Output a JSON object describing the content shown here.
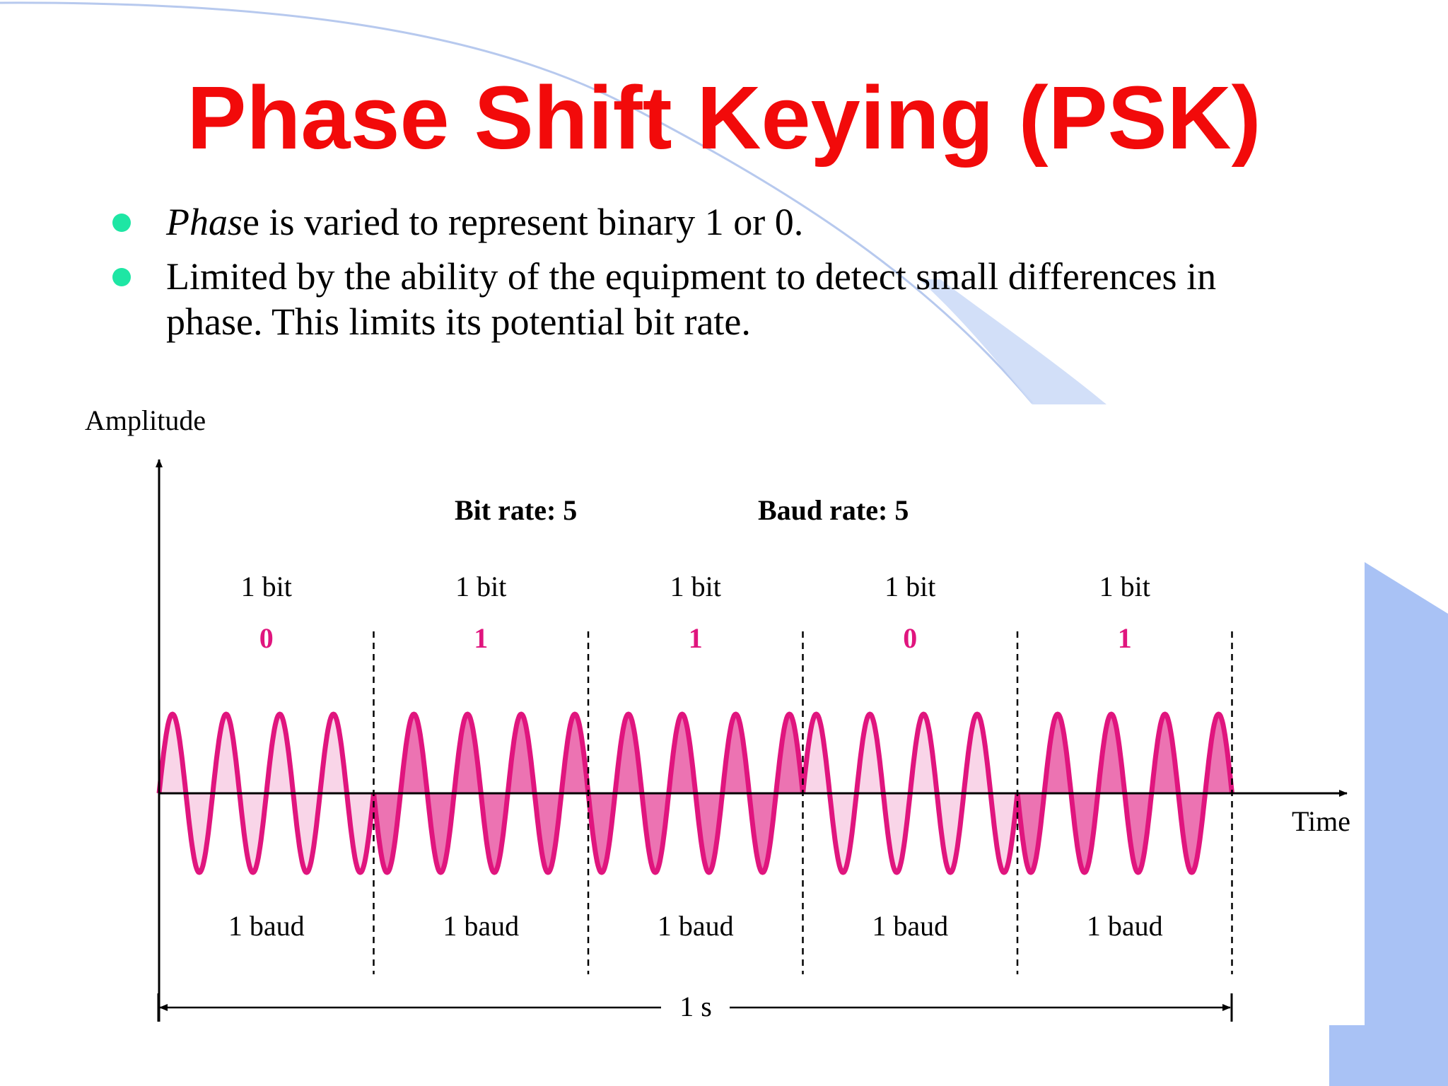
{
  "slide": {
    "title": "Phase Shift Keying (PSK)",
    "bullets": [
      {
        "emphasis": "Phas",
        "rest": "e is varied to represent binary 1 or 0."
      },
      {
        "emphasis": "",
        "rest": "Limited by the ability of the equipment to detect small differences in phase. This limits its potential bit rate."
      }
    ],
    "colors": {
      "title": "#f20a0a",
      "bullet": "#1ee6a4",
      "wave": "#e0157e",
      "bits": "#e0157e",
      "deco": "#a9c2f5"
    }
  },
  "diagram": {
    "y_axis_label": "Amplitude",
    "x_axis_label": "Time",
    "bit_rate_label": "Bit rate: 5",
    "baud_rate_label": "Baud rate: 5",
    "bit_label": "1 bit",
    "baud_label": "1 baud",
    "duration_label": "1 s",
    "bits": [
      "0",
      "1",
      "1",
      "0",
      "1"
    ],
    "cycles_per_bit": 4,
    "phase_for_bit": {
      "0": 0,
      "1": 180
    }
  }
}
